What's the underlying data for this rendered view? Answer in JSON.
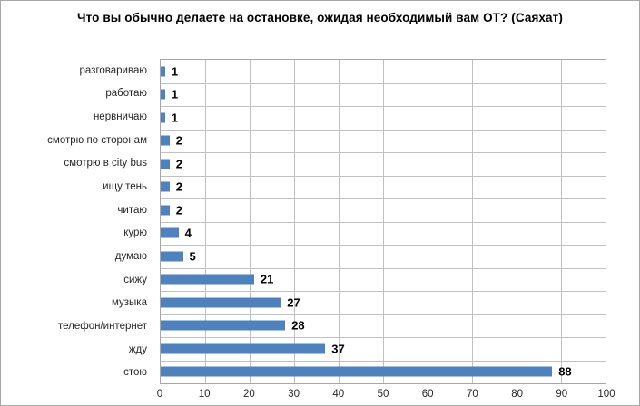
{
  "chart_data": {
    "type": "bar",
    "orientation": "horizontal",
    "title": "Что вы обычно делаете на остановке, ожидая необходимый вам ОТ? (Саяхат)",
    "categories": [
      "разговариваю",
      "работаю",
      "нервничаю",
      "смотрю по сторонам",
      "смотрю в city bus",
      "ищу тень",
      "читаю",
      "курю",
      "думаю",
      "сижу",
      "музыка",
      "телефон/интернет",
      "жду",
      "стою"
    ],
    "values": [
      1,
      1,
      1,
      2,
      2,
      2,
      2,
      4,
      5,
      21,
      27,
      28,
      37,
      88
    ],
    "xlabel": "",
    "ylabel": "",
    "xlim": [
      0,
      100
    ],
    "xticks": [
      0,
      10,
      20,
      30,
      40,
      50,
      60,
      70,
      80,
      90,
      100
    ],
    "data_labels": true,
    "legend": "none",
    "grid": "on",
    "colors": {
      "bar": "#4f81bd",
      "gridline": "#c0c0c0",
      "plot_border": "#a6a6a6",
      "title_text": "#000000",
      "axis_text": "#262626",
      "value_label_text": "#000000",
      "background": "#ffffff"
    }
  }
}
